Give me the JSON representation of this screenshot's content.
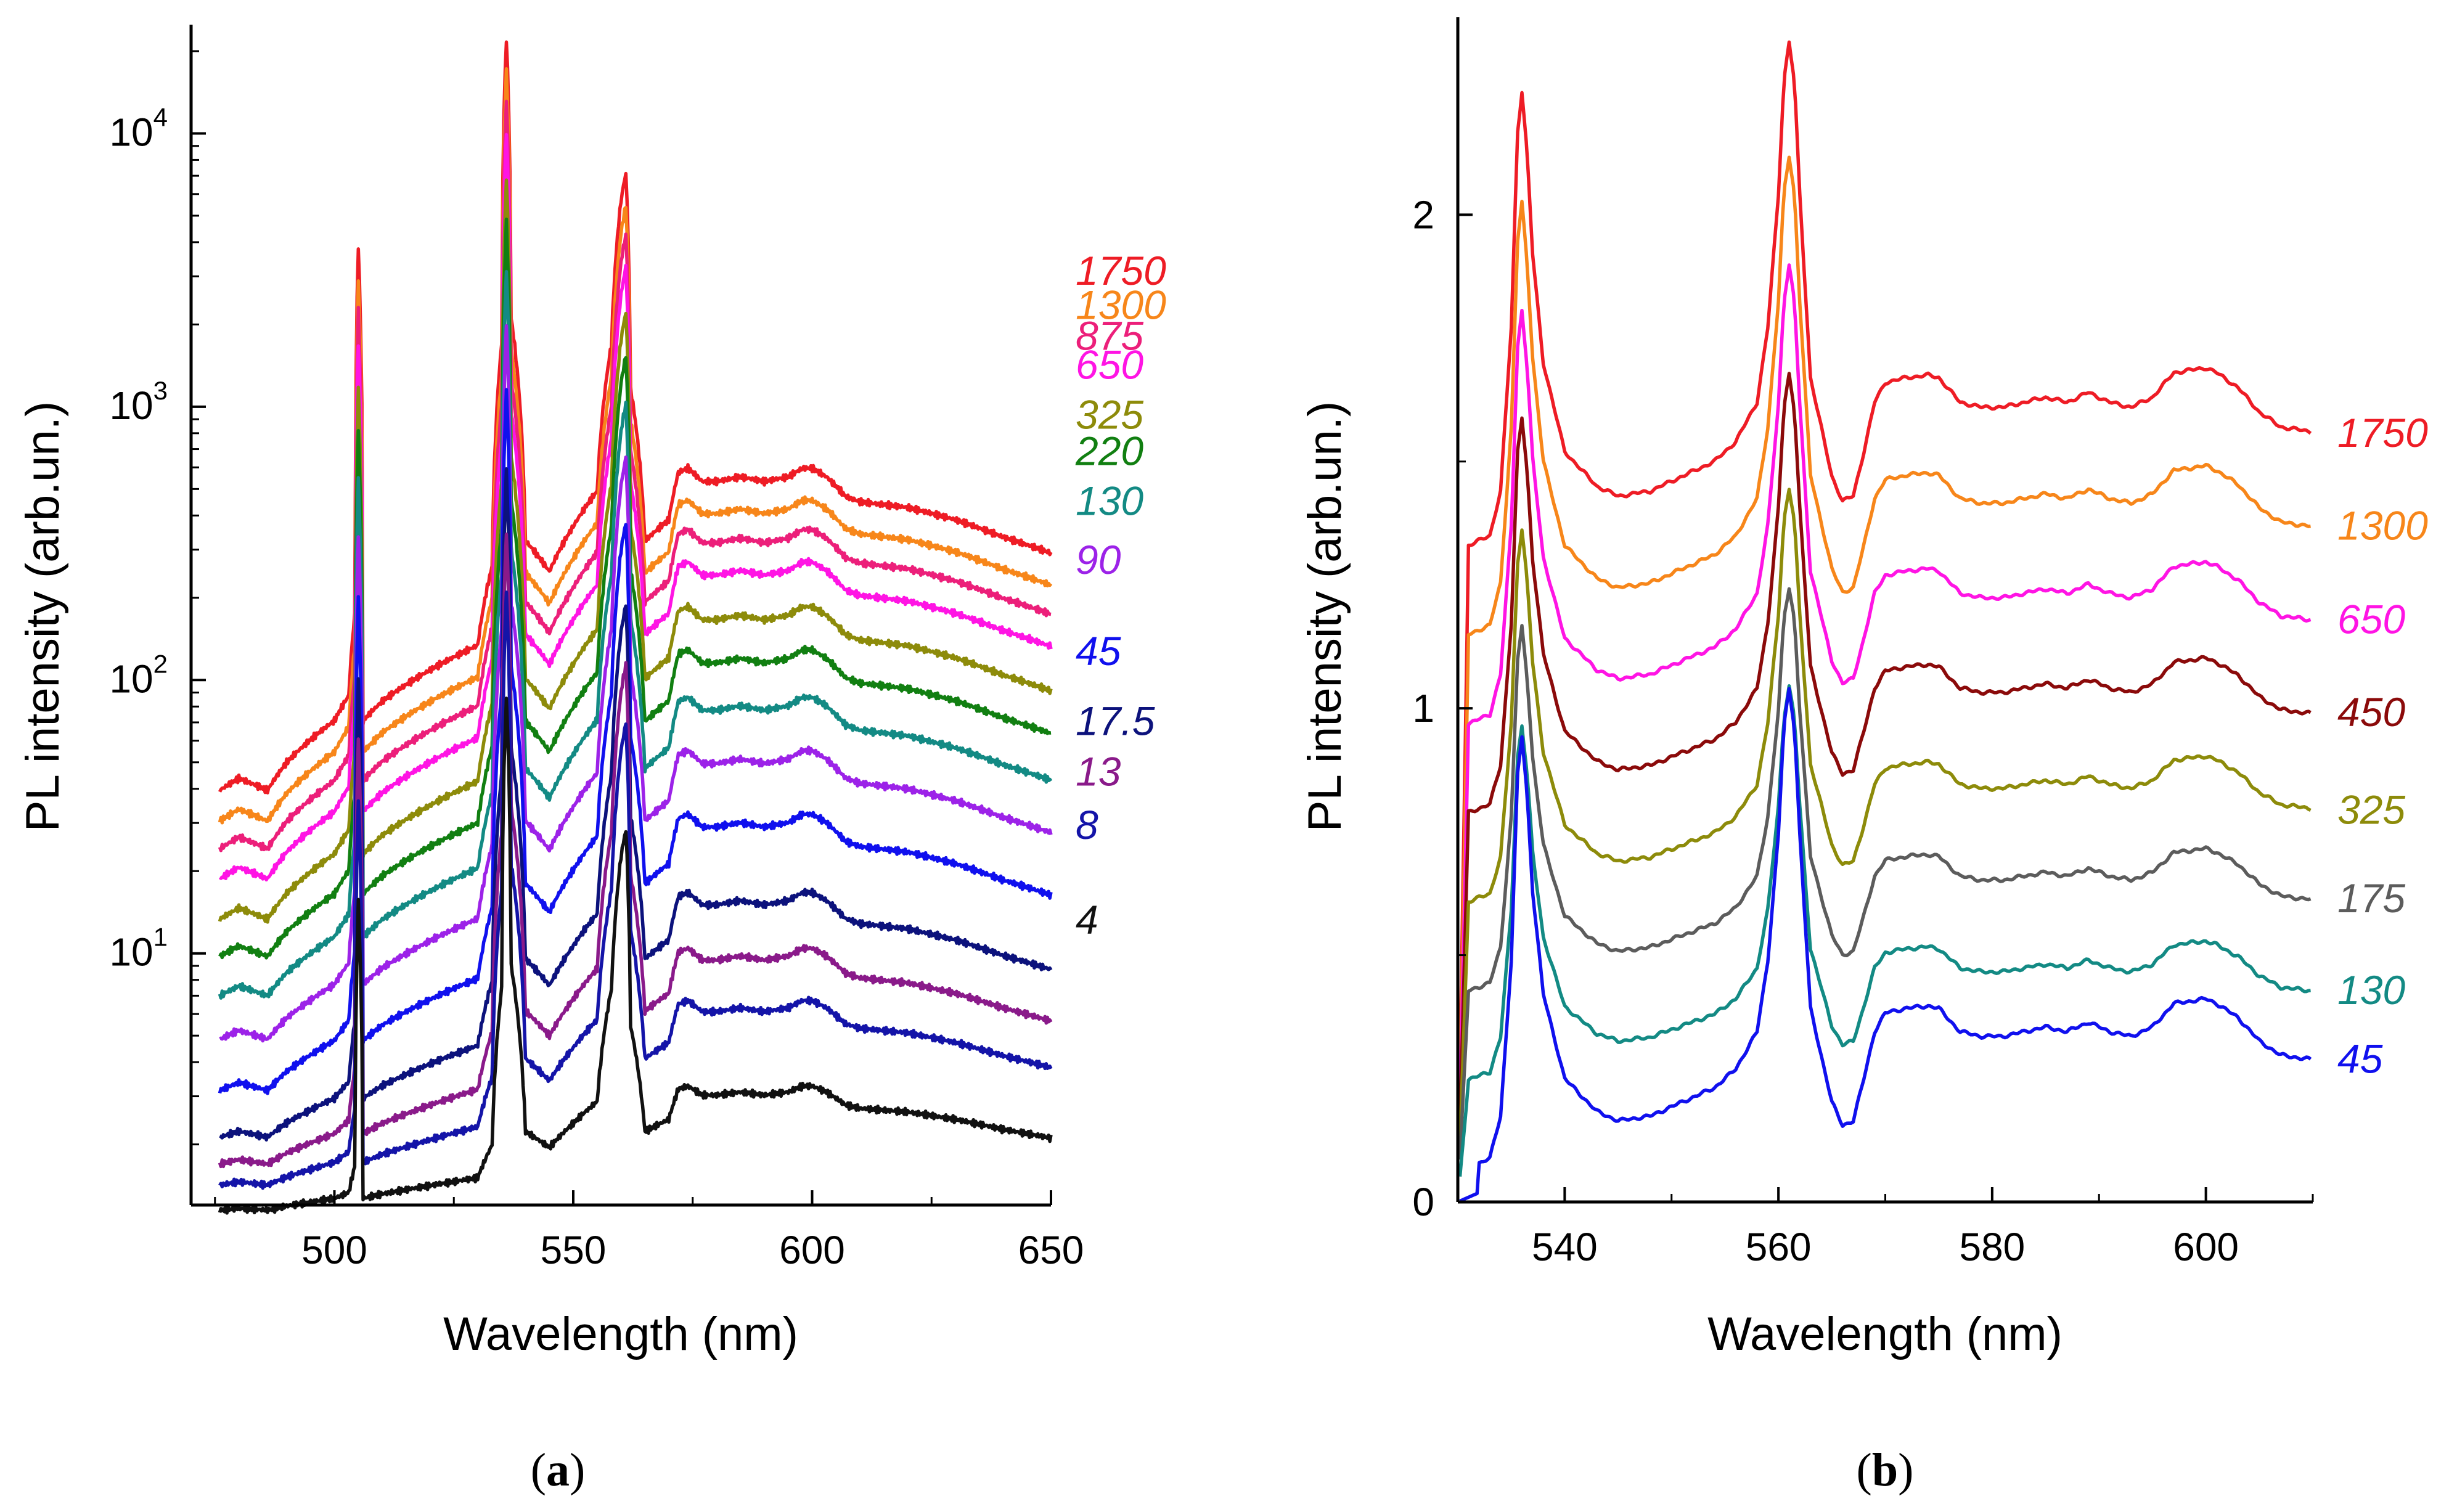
{
  "chart_data": [
    {
      "panel_label": "(a)",
      "panel_label_parts": {
        "open": "(",
        "letter": "a",
        "close": ")"
      },
      "type": "line",
      "yscale": "log",
      "xlabel": "Wavelength (nm)",
      "ylabel": "PL intensity (arb.un.)",
      "xlim": [
        470,
        650
      ],
      "ylim": [
        1.2,
        25000
      ],
      "xticks": [
        500,
        550,
        600,
        650
      ],
      "yticks": [
        {
          "value": 10,
          "base": "10",
          "exp": "1"
        },
        {
          "value": 100,
          "base": "10",
          "exp": "2"
        },
        {
          "value": 1000,
          "base": "10",
          "exp": "3"
        },
        {
          "value": 10000,
          "base": "10",
          "exp": "4"
        }
      ],
      "profile": {
        "x": [
          476,
          480,
          483,
          486,
          490,
          495,
          500,
          503,
          504.3,
          505,
          506,
          510,
          520,
          530,
          533,
          535,
          536,
          537,
          540,
          545,
          550,
          555,
          558,
          560,
          561,
          562,
          565,
          570,
          572,
          574,
          577,
          580,
          585,
          590,
          595,
          598,
          600,
          603,
          607,
          610,
          620,
          630,
          640,
          650
        ],
        "y": [
          1.5,
          1.7,
          1.6,
          1.5,
          2.0,
          2.5,
          3.0,
          3.8,
          8.0,
          180,
          3.0,
          3.6,
          4.8,
          6.0,
          12,
          80,
          1050,
          100,
          15,
          11.5,
          17,
          23,
          80,
          270,
          340,
          55,
          15,
          18,
          27,
          28,
          25,
          25,
          26,
          25,
          26,
          28,
          28,
          26,
          22,
          21,
          20,
          18,
          15.5,
          13.5
        ]
      },
      "series": [
        {
          "name": "1750",
          "color": "#ee1c25",
          "scale": 21,
          "start": 8,
          "y_end": 3200
        },
        {
          "name": "1300",
          "color": "#f7861a",
          "scale": 16,
          "start": 6.5,
          "y_end": 2400
        },
        {
          "name": "875",
          "color": "#ec1f7a",
          "scale": 12.5,
          "start": 5.4,
          "y_end": 1850
        },
        {
          "name": "650",
          "color": "#ff14e4",
          "scale": 9.5,
          "start": 4.5,
          "y_end": 1450
        },
        {
          "name": "325",
          "color": "#8d8b0a",
          "scale": 6.5,
          "start": 3.6,
          "y_end": 950
        },
        {
          "name": "220",
          "color": "#117f11",
          "scale": 4.5,
          "start": 3,
          "y_end": 700
        },
        {
          "name": "130",
          "color": "#138a84",
          "scale": 3,
          "start": 2.5,
          "y_end": 460
        },
        {
          "name": "90",
          "color": "#9c22e8",
          "scale": 1.9,
          "start": 2,
          "y_end": 280
        },
        {
          "name": "45",
          "color": "#1010ee",
          "scale": 1.1,
          "start": 1.5,
          "y_end": 130
        },
        {
          "name": "17.5",
          "color": "#0c127c",
          "scale": 0.55,
          "start": 1.3,
          "y_end": 72
        },
        {
          "name": "13",
          "color": "#8a1a8a",
          "scale": 0.33,
          "start": 1.2,
          "y_end": 47
        },
        {
          "name": "8",
          "color": "#1414a8",
          "scale": 0.2,
          "start": 1.12,
          "y_end": 30
        },
        {
          "name": "4",
          "color": "#111111",
          "scale": 0.08,
          "start": 1.03,
          "y_end": 13.5
        }
      ]
    },
    {
      "panel_label": "(b)",
      "panel_label_parts": {
        "open": "(",
        "letter": "b",
        "close": ")"
      },
      "type": "line",
      "yscale": "linear",
      "xlabel": "Wavelength (nm)",
      "ylabel": "PL intensity (arb.un.)",
      "xlim": [
        530,
        610
      ],
      "ylim": [
        0,
        2.4
      ],
      "xticks": [
        540,
        560,
        580,
        600
      ],
      "yticks": [
        0,
        1,
        2
      ],
      "profile": {
        "x": [
          530,
          531,
          533,
          534,
          535,
          535.6,
          536,
          536.5,
          537,
          538,
          540,
          543,
          545,
          548,
          551,
          554,
          556,
          558,
          559,
          560,
          560.5,
          561,
          561.5,
          562,
          563,
          565,
          566,
          567,
          568,
          569,
          570,
          572,
          574,
          575,
          577,
          579,
          581,
          583,
          585,
          587,
          589,
          591,
          593,
          595,
          597,
          600,
          601,
          603,
          605,
          607,
          610
        ],
        "y": [
          0,
          0.01,
          0.03,
          0.12,
          0.45,
          0.85,
          0.93,
          0.8,
          0.6,
          0.38,
          0.2,
          0.13,
          0.11,
          0.12,
          0.15,
          0.18,
          0.22,
          0.3,
          0.45,
          0.72,
          0.95,
          1.03,
          0.95,
          0.72,
          0.35,
          0.15,
          0.1,
          0.11,
          0.2,
          0.3,
          0.34,
          0.35,
          0.355,
          0.35,
          0.3,
          0.29,
          0.29,
          0.3,
          0.31,
          0.3,
          0.32,
          0.3,
          0.29,
          0.31,
          0.36,
          0.37,
          0.36,
          0.33,
          0.28,
          0.25,
          0.24
        ]
      },
      "series": [
        {
          "name": "1750",
          "color": "#ee1c25",
          "offset": 1.32,
          "scale": 1.0
        },
        {
          "name": "1300",
          "color": "#f7861a",
          "offset": 1.14,
          "scale": 0.95
        },
        {
          "name": "650",
          "color": "#ff14e4",
          "offset": 0.96,
          "scale": 0.91
        },
        {
          "name": "450",
          "color": "#8b0a0a",
          "offset": 0.78,
          "scale": 0.87
        },
        {
          "name": "325",
          "color": "#8d8b0a",
          "offset": 0.6,
          "scale": 0.82
        },
        {
          "name": "175",
          "color": "#5c5c5c",
          "offset": 0.42,
          "scale": 0.8
        },
        {
          "name": "130",
          "color": "#138a84",
          "offset": 0.24,
          "scale": 0.78
        },
        {
          "name": "45",
          "color": "#1010ee",
          "offset": 0.06,
          "scale": 0.95
        }
      ]
    }
  ]
}
